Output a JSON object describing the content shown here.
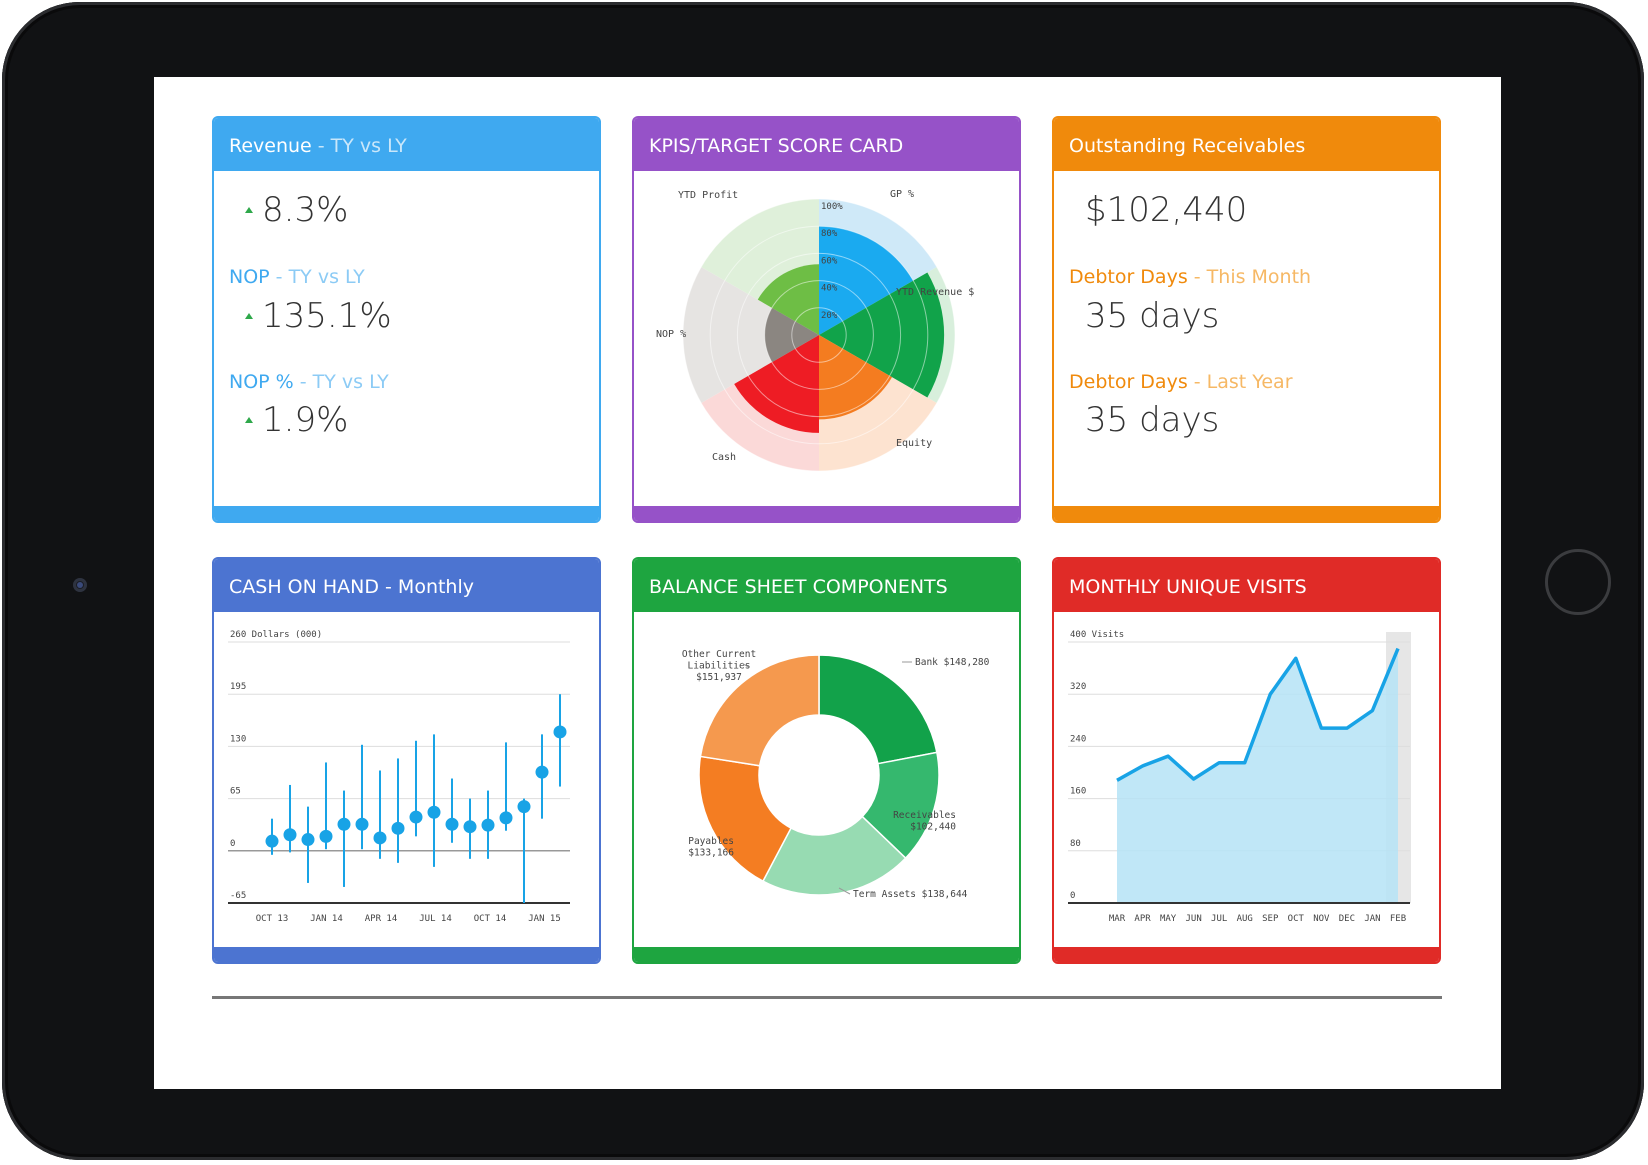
{
  "revenue_card": {
    "title": "Revenue",
    "title_sub": " - TY vs LY",
    "value1": "8.3%",
    "label2": "NOP",
    "label2_sub": " - TY vs LY",
    "value2": "135.1%",
    "label3": "NOP %",
    "label3_sub": " - TY vs LY",
    "value3": "1.9%",
    "accent": "#3fa9f0"
  },
  "kpi_card": {
    "title": "KPIS/TARGET SCORE CARD",
    "accent": "#9652c8"
  },
  "receivables_card": {
    "title": "Outstanding Receivables",
    "value1": "$102,440",
    "label2": "Debtor Days",
    "label2_sub": " - This Month",
    "value2": "35 days",
    "label3": "Debtor Days",
    "label3_sub": " - Last Year",
    "value3": "35 days",
    "accent": "#f08a0c"
  },
  "cash_card": {
    "title": "CASH ON HAND - Monthly",
    "accent": "#4c74d1"
  },
  "balance_card": {
    "title": "BALANCE SHEET COMPONENTS",
    "accent": "#1ea540"
  },
  "visits_card": {
    "title": "MONTHLY UNIQUE VISITS",
    "accent": "#e02b27"
  },
  "chart_data": [
    {
      "type": "polar-area",
      "categories": [
        "GP %",
        "YTD Revenue $",
        "Equity",
        "Cash",
        "NOP %",
        "YTD Profit"
      ],
      "actual": [
        80,
        92,
        62,
        72,
        40,
        52
      ],
      "target": [
        100,
        100,
        100,
        100,
        100,
        100
      ],
      "colors": [
        "#1aaaf0",
        "#11a34a",
        "#f47c20",
        "#ee1c24",
        "#8b8681",
        "#6ebe45"
      ],
      "target_colors": [
        "#cfe9f8",
        "#d8efdc",
        "#fde3d0",
        "#fbd9d8",
        "#e6e4e2",
        "#dff0da"
      ],
      "rings": [
        "20%",
        "40%",
        "60%",
        "80%",
        "100%"
      ]
    },
    {
      "type": "error-bar",
      "ylabel": "Dollars (000)",
      "yticks": [
        260,
        195,
        130,
        65,
        0,
        -65
      ],
      "ylim": [
        -65,
        260
      ],
      "xticks": [
        "OCT 13",
        "JAN 14",
        "APR 14",
        "JUL 14",
        "OCT 14",
        "JAN 15"
      ],
      "values": [
        12,
        20,
        14,
        18,
        33,
        33,
        16,
        28,
        42,
        48,
        33,
        30,
        32,
        41,
        55,
        98,
        148
      ],
      "lows": [
        -5,
        -2,
        -40,
        2,
        -45,
        2,
        -10,
        -15,
        18,
        -20,
        10,
        -10,
        -10,
        25,
        -65,
        40,
        80
      ],
      "highs": [
        40,
        82,
        55,
        110,
        75,
        132,
        100,
        115,
        137,
        145,
        90,
        65,
        75,
        135,
        65,
        145,
        195
      ],
      "color": "#18a3e6"
    },
    {
      "type": "donut",
      "slices": [
        {
          "label": "Bank",
          "value_text": "$148,280",
          "value": 148280,
          "color": "#12a24a"
        },
        {
          "label": "Receivables",
          "value_text": "$102,440",
          "value": 102440,
          "color": "#35b86e"
        },
        {
          "label": "Term Assets",
          "value_text": "$138,644",
          "value": 138644,
          "color": "#97dbb2"
        },
        {
          "label": "Payables",
          "value_text": "$133,166",
          "value": 133166,
          "color": "#f47d22"
        },
        {
          "label": "Other Current Liabilities",
          "value_text": "$151,937",
          "value": 151937,
          "color": "#f5994e"
        }
      ]
    },
    {
      "type": "area",
      "ylabel": "Visits",
      "yticks": [
        400,
        320,
        240,
        160,
        80,
        0
      ],
      "ylim": [
        0,
        400
      ],
      "categories": [
        "MAR",
        "APR",
        "MAY",
        "JUN",
        "JUL",
        "AUG",
        "SEP",
        "OCT",
        "NOV",
        "DEC",
        "JAN",
        "FEB"
      ],
      "values": [
        188,
        210,
        225,
        190,
        215,
        215,
        320,
        375,
        268,
        268,
        295,
        390
      ],
      "line_color": "#18a3e6",
      "fill_color": "#b5e3f6"
    }
  ]
}
